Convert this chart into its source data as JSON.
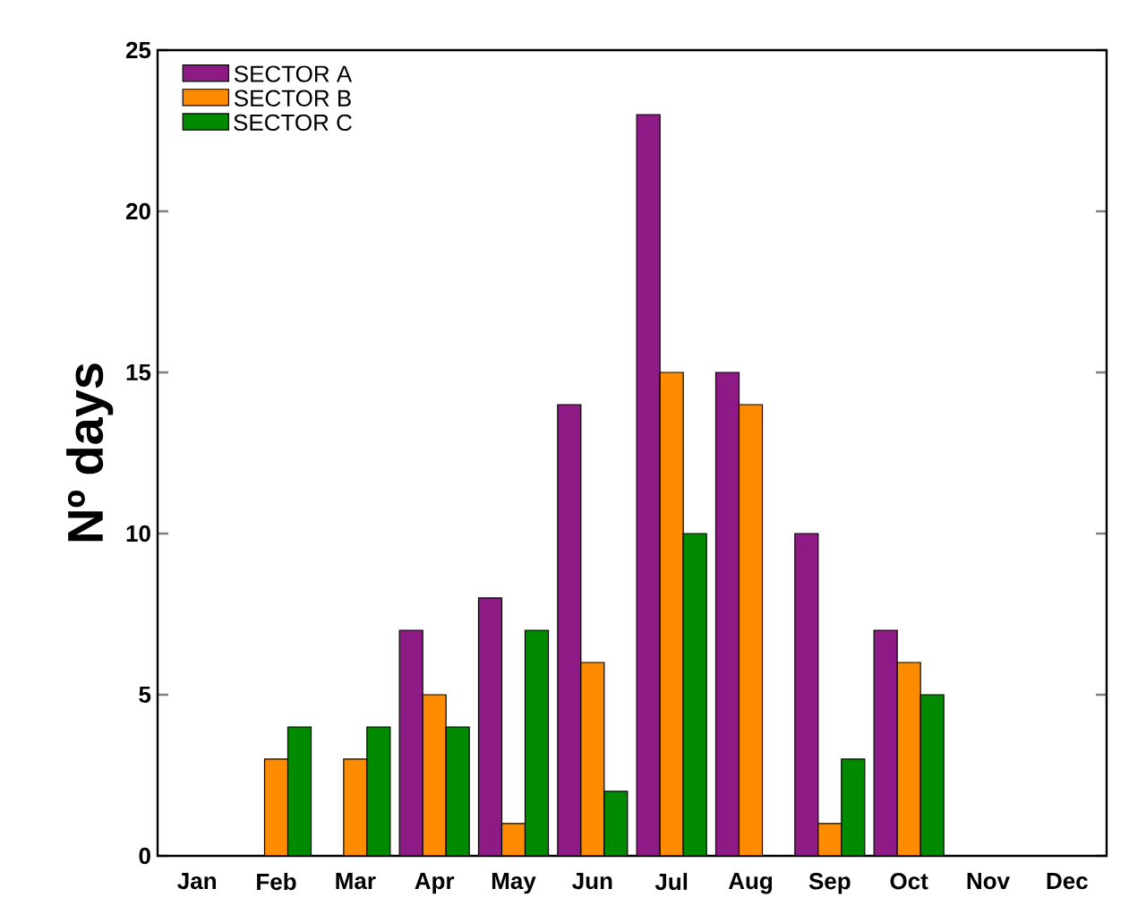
{
  "chart_data": {
    "type": "bar",
    "ylabel": "Nº days",
    "categories": [
      "Jan",
      "Feb",
      "Mar",
      "Apr",
      "May",
      "Jun",
      "Jul",
      "Aug",
      "Sep",
      "Oct",
      "Nov",
      "Dec"
    ],
    "series": [
      {
        "name": "SECTOR A",
        "color": "#8e1a86",
        "values": [
          0,
          0,
          0,
          7,
          8,
          14,
          23,
          15,
          10,
          7,
          0,
          0
        ]
      },
      {
        "name": "SECTOR B",
        "color": "#ff8c00",
        "values": [
          0,
          3,
          3,
          5,
          1,
          6,
          15,
          14,
          1,
          6,
          0,
          0
        ]
      },
      {
        "name": "SECTOR C",
        "color": "#008a00",
        "values": [
          0,
          4,
          4,
          4,
          7,
          2,
          10,
          0,
          3,
          5,
          0,
          0
        ]
      }
    ],
    "ylim": [
      0,
      25
    ],
    "yticks": [
      0,
      5,
      10,
      15,
      20,
      25
    ],
    "legend": "top left",
    "grid": false
  }
}
